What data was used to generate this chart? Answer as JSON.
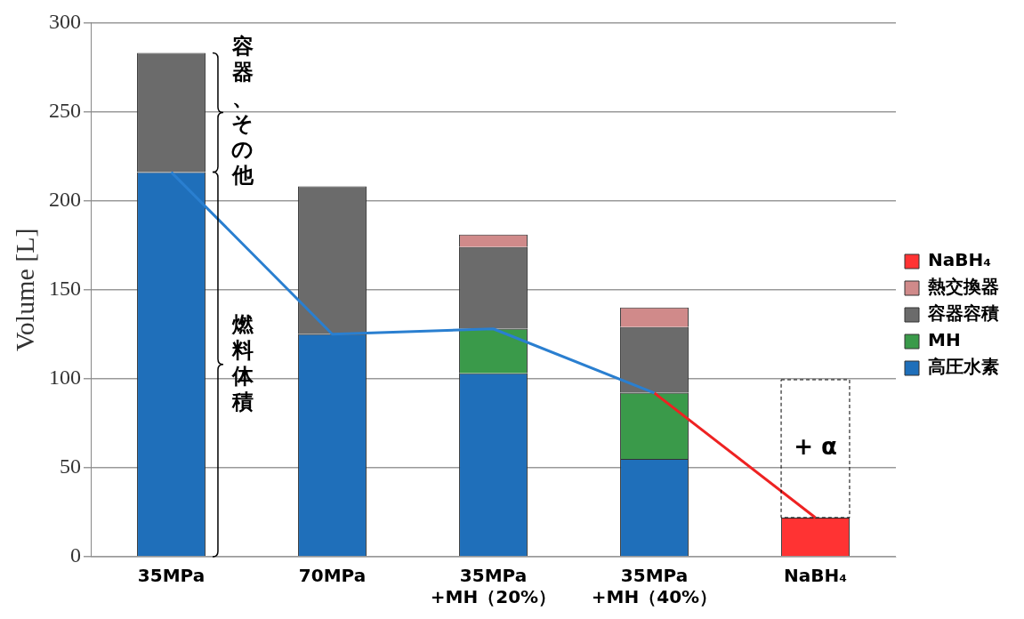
{
  "chart_data": {
    "type": "bar",
    "stacked": true,
    "ylabel": "Volume [L]",
    "categories": [
      "35MPa",
      "70MPa",
      "35MPa\n+MH（20%）",
      "35MPa\n+MH（40%）",
      "NaBH₄"
    ],
    "series": [
      {
        "name": "高圧水素",
        "color": "#1f6fba",
        "values": [
          216,
          125,
          103,
          55,
          null
        ]
      },
      {
        "name": "MH",
        "color": "#3a9a4a",
        "values": [
          null,
          null,
          25,
          37,
          null
        ]
      },
      {
        "name": "容器容積",
        "color": "#6b6b6b",
        "values": [
          67,
          83,
          46,
          37,
          null
        ]
      },
      {
        "name": "熱交換器",
        "color": "#d08a8a",
        "values": [
          null,
          null,
          7,
          11,
          null
        ]
      },
      {
        "name": "NaBH₄",
        "color": "#ff3333",
        "values": [
          null,
          null,
          null,
          null,
          22
        ]
      },
      {
        "type": "line",
        "color": "#2a7fd0",
        "values": [
          216,
          125,
          128,
          92,
          null
        ]
      },
      {
        "type": "line",
        "color": "#ee2222",
        "values": [
          null,
          null,
          null,
          92,
          22
        ]
      }
    ],
    "ylim": [
      0,
      300
    ],
    "yticks": [
      0,
      50,
      100,
      150,
      200,
      250,
      300
    ],
    "grid": "y",
    "legend": "right",
    "marker": "none",
    "annotations": [
      "容器、その他",
      "燃料体積",
      "+ α"
    ]
  }
}
